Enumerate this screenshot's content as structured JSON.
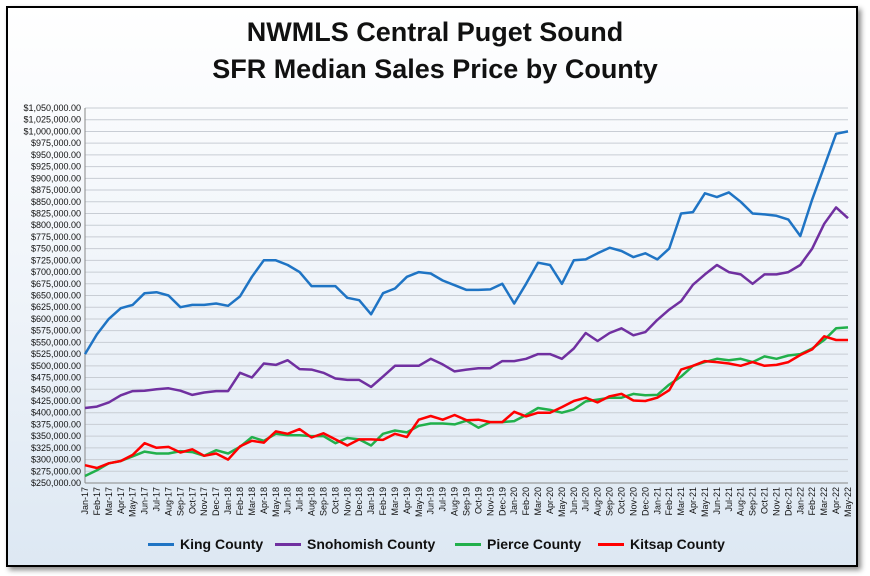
{
  "chart_data": {
    "type": "line",
    "title": "NWMLS Central Puget Sound",
    "subtitle": "SFR Median Sales Price by County",
    "xlabel": "",
    "ylabel": "",
    "ylim": [
      250000,
      1050000
    ],
    "y_ticks": [
      "$250,000.00",
      "$275,000.00",
      "$300,000.00",
      "$325,000.00",
      "$350,000.00",
      "$375,000.00",
      "$400,000.00",
      "$425,000.00",
      "$450,000.00",
      "$475,000.00",
      "$500,000.00",
      "$525,000.00",
      "$550,000.00",
      "$575,000.00",
      "$600,000.00",
      "$625,000.00",
      "$650,000.00",
      "$675,000.00",
      "$700,000.00",
      "$725,000.00",
      "$750,000.00",
      "$775,000.00",
      "$800,000.00",
      "$825,000.00",
      "$850,000.00",
      "$875,000.00",
      "$900,000.00",
      "$925,000.00",
      "$950,000.00",
      "$975,000.00",
      "$1,000,000.00",
      "$1,025,000.00",
      "$1,050,000.00"
    ],
    "grid": true,
    "legend_position": "bottom",
    "categories": [
      "Jan-17",
      "Feb-17",
      "Mar-17",
      "Apr-17",
      "May-17",
      "Jun-17",
      "Jul-17",
      "Aug-17",
      "Sep-17",
      "Oct-17",
      "Nov-17",
      "Dec-17",
      "Jan-18",
      "Feb-18",
      "Mar-18",
      "Apr-18",
      "May-18",
      "Jun-18",
      "Jul-18",
      "Aug-18",
      "Sep-18",
      "Oct-18",
      "Nov-18",
      "Dec-18",
      "Jan-19",
      "Feb-19",
      "Mar-19",
      "Apr-19",
      "May-19",
      "Jun-19",
      "Jul-19",
      "Aug-19",
      "Sep-19",
      "Oct-19",
      "Nov-19",
      "Dec-19",
      "Jan-20",
      "Feb-20",
      "Mar-20",
      "Apr-20",
      "May-20",
      "Jun-20",
      "Jul-20",
      "Aug-20",
      "Sep-20",
      "Oct-20",
      "Nov-20",
      "Dec-20",
      "Jan-21",
      "Feb-21",
      "Mar-21",
      "Apr-21",
      "May-21",
      "Jun-21",
      "Jul-21",
      "Aug-21",
      "Sep-21",
      "Oct-21",
      "Nov-21",
      "Dec-21",
      "Jan-22",
      "Feb-22",
      "Mar-22",
      "Apr-22",
      "May-22"
    ],
    "series": [
      {
        "name": "King County",
        "color": "#1f74c4",
        "values": [
          525000,
          567000,
          600000,
          623000,
          630000,
          655000,
          657000,
          650000,
          625000,
          630000,
          630000,
          633000,
          628000,
          648000,
          690000,
          725000,
          725000,
          715000,
          700000,
          670000,
          670000,
          670000,
          645000,
          640000,
          610000,
          655000,
          665000,
          690000,
          700000,
          697000,
          682000,
          672000,
          662000,
          662000,
          663000,
          675000,
          633000,
          675000,
          720000,
          715000,
          675000,
          725000,
          727000,
          740000,
          752000,
          745000,
          732000,
          740000,
          727000,
          750000,
          825000,
          828000,
          868000,
          860000,
          870000,
          850000,
          825000,
          823000,
          820000,
          812000,
          777000,
          855000,
          925000,
          995000,
          1000000
        ]
      },
      {
        "name": "Snohomish County",
        "color": "#7030a0",
        "values": [
          410000,
          413000,
          422000,
          437000,
          446000,
          447000,
          450000,
          452000,
          447000,
          438000,
          443000,
          446000,
          446000,
          485000,
          475000,
          505000,
          502000,
          512000,
          493000,
          492000,
          485000,
          473000,
          470000,
          470000,
          455000,
          477000,
          500000,
          500000,
          500000,
          515000,
          503000,
          488000,
          492000,
          495000,
          495000,
          510000,
          510000,
          515000,
          525000,
          525000,
          515000,
          537000,
          570000,
          553000,
          570000,
          580000,
          565000,
          572000,
          598000,
          620000,
          638000,
          673000,
          695000,
          715000,
          700000,
          695000,
          675000,
          695000,
          695000,
          700000,
          715000,
          750000,
          803000,
          838000,
          815000
        ]
      },
      {
        "name": "Pierce County",
        "color": "#21b04b",
        "values": [
          265000,
          277000,
          292000,
          297000,
          307000,
          317000,
          313000,
          313000,
          318000,
          316000,
          308000,
          320000,
          313000,
          327000,
          348000,
          340000,
          355000,
          352000,
          352000,
          350000,
          350000,
          335000,
          346000,
          343000,
          330000,
          355000,
          362000,
          358000,
          372000,
          377000,
          377000,
          375000,
          383000,
          368000,
          380000,
          380000,
          382000,
          395000,
          410000,
          406000,
          400000,
          407000,
          424000,
          428000,
          432000,
          432000,
          440000,
          437000,
          438000,
          460000,
          477000,
          500000,
          508000,
          515000,
          512000,
          515000,
          508000,
          520000,
          515000,
          522000,
          525000,
          537000,
          555000,
          580000,
          582000
        ]
      },
      {
        "name": "Kitsap County",
        "color": "#ff0000",
        "values": [
          288000,
          282000,
          292000,
          297000,
          310000,
          335000,
          325000,
          327000,
          315000,
          322000,
          308000,
          313000,
          300000,
          328000,
          340000,
          336000,
          360000,
          355000,
          365000,
          347000,
          356000,
          343000,
          330000,
          343000,
          343000,
          342000,
          355000,
          348000,
          385000,
          393000,
          385000,
          395000,
          384000,
          385000,
          380000,
          380000,
          402000,
          392000,
          400000,
          400000,
          412000,
          425000,
          432000,
          422000,
          435000,
          440000,
          426000,
          425000,
          432000,
          448000,
          492000,
          500000,
          510000,
          508000,
          505000,
          500000,
          508000,
          500000,
          502000,
          508000,
          523000,
          535000,
          563000,
          555000,
          555000
        ]
      }
    ]
  }
}
